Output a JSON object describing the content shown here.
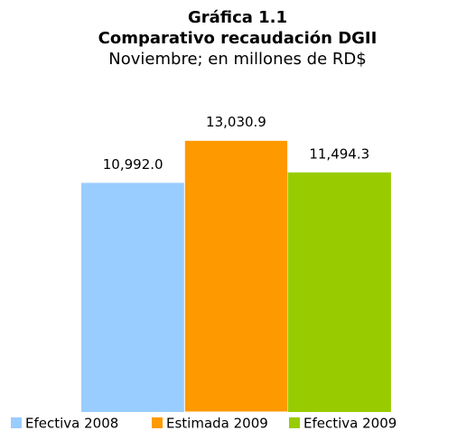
{
  "chart_data": {
    "type": "bar",
    "title": "Gráfica 1.1",
    "subtitle": "Comparativo recaudación DGII",
    "subtitle2": "Noviembre; en millones de RD$",
    "series": [
      {
        "name": "Efectiva 2008",
        "color": "#99ccff",
        "values": [
          10992.0
        ],
        "value_labels": [
          "10,992.0"
        ]
      },
      {
        "name": "Estimada 2009",
        "color": "#ff9900",
        "values": [
          13030.9
        ],
        "value_labels": [
          "13,030.9"
        ]
      },
      {
        "name": "Efectiva 2009",
        "color": "#99cc00",
        "values": [
          11494.3
        ],
        "value_labels": [
          "11,494.3"
        ]
      }
    ],
    "ylim": [
      0,
      14000
    ]
  }
}
